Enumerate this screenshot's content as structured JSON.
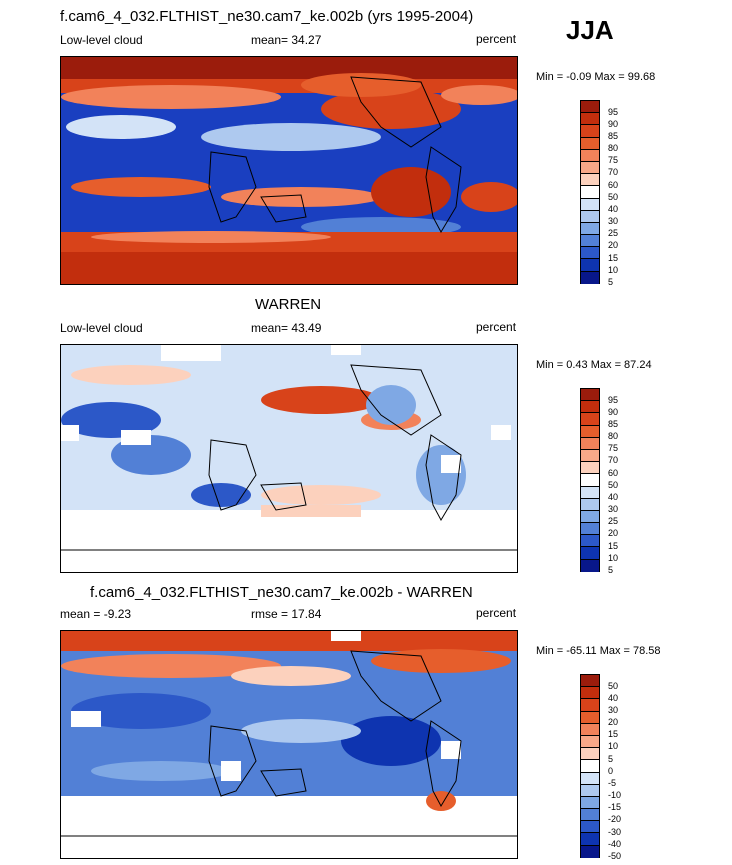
{
  "season": "JJA",
  "panels": [
    {
      "title": "f.cam6_4_032.FLTHIST_ne30.cam7_ke.002b (yrs 1995-2004)",
      "left_label": "Low-level cloud",
      "center_label": "mean=  34.27",
      "right_label": "percent",
      "minmax": "Min =  -0.09 Max =  99.68",
      "colorbar_labels": [
        "95",
        "90",
        "85",
        "80",
        "75",
        "70",
        "60",
        "50",
        "40",
        "30",
        "25",
        "20",
        "15",
        "10",
        "5"
      ],
      "colorbar_colors": [
        "#9b1c0c",
        "#c22e0d",
        "#d8431a",
        "#e65e2c",
        "#f2825a",
        "#f8a888",
        "#fcd1bd",
        "#ffffff",
        "#d3e3f7",
        "#aec9ef",
        "#7fa8e4",
        "#5280d6",
        "#2c58c8",
        "#0e34b0",
        "#08178a"
      ]
    },
    {
      "title": "WARREN",
      "left_label": "Low-level cloud",
      "center_label": "mean=  43.49",
      "right_label": "percent",
      "minmax": "Min =  0.43 Max =  87.24",
      "colorbar_labels": [
        "95",
        "90",
        "85",
        "80",
        "75",
        "70",
        "60",
        "50",
        "40",
        "30",
        "25",
        "20",
        "15",
        "10",
        "5"
      ],
      "colorbar_colors": [
        "#9b1c0c",
        "#c22e0d",
        "#d8431a",
        "#e65e2c",
        "#f2825a",
        "#f8a888",
        "#fcd1bd",
        "#ffffff",
        "#d3e3f7",
        "#aec9ef",
        "#7fa8e4",
        "#5280d6",
        "#2c58c8",
        "#0e34b0",
        "#08178a"
      ]
    },
    {
      "title": "f.cam6_4_032.FLTHIST_ne30.cam7_ke.002b - WARREN",
      "left_label": "mean =  -9.23",
      "center_label": "rmse =  17.84",
      "right_label": "percent",
      "minmax": "Min = -65.11 Max =  78.58",
      "colorbar_labels": [
        "50",
        "40",
        "30",
        "20",
        "15",
        "10",
        "5",
        "0",
        "-5",
        "-10",
        "-15",
        "-20",
        "-30",
        "-40",
        "-50"
      ],
      "colorbar_colors": [
        "#9b1c0c",
        "#c22e0d",
        "#d8431a",
        "#e65e2c",
        "#f2825a",
        "#f8a888",
        "#fcd1bd",
        "#ffffff",
        "#d3e3f7",
        "#aec9ef",
        "#7fa8e4",
        "#5280d6",
        "#2c58c8",
        "#0e34b0",
        "#08178a"
      ]
    }
  ],
  "chart_data": [
    {
      "type": "heatmap",
      "title": "f.cam6_4_032.FLTHIST_ne30.cam7_ke.002b (yrs 1995-2004)",
      "variable": "Low-level cloud",
      "units": "percent",
      "mean": 34.27,
      "min": -0.09,
      "max": 99.68,
      "levels": [
        5,
        10,
        15,
        20,
        25,
        30,
        40,
        50,
        60,
        70,
        75,
        80,
        85,
        90,
        95
      ]
    },
    {
      "type": "heatmap",
      "title": "WARREN",
      "variable": "Low-level cloud",
      "units": "percent",
      "mean": 43.49,
      "min": 0.43,
      "max": 87.24,
      "levels": [
        5,
        10,
        15,
        20,
        25,
        30,
        40,
        50,
        60,
        70,
        75,
        80,
        85,
        90,
        95
      ]
    },
    {
      "type": "heatmap",
      "title": "f.cam6_4_032.FLTHIST_ne30.cam7_ke.002b - WARREN",
      "units": "percent",
      "mean": -9.23,
      "rmse": 17.84,
      "min": -65.11,
      "max": 78.58,
      "levels": [
        -50,
        -40,
        -30,
        -20,
        -15,
        -10,
        -5,
        0,
        5,
        10,
        15,
        20,
        30,
        40,
        50
      ]
    }
  ]
}
